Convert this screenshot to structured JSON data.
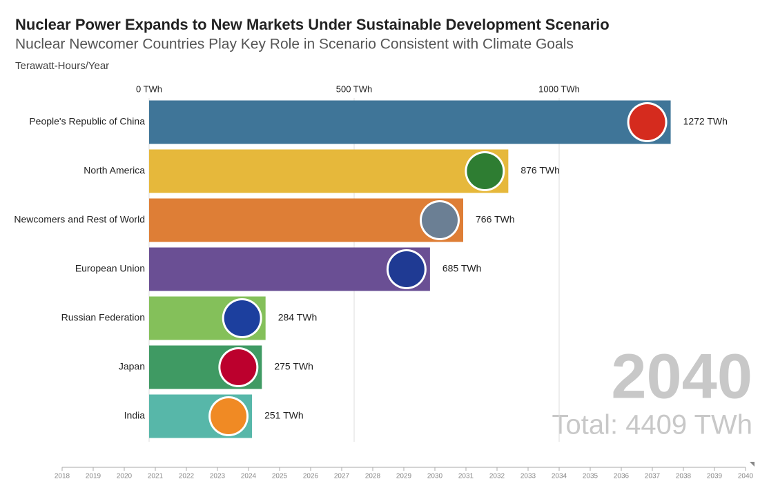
{
  "chart_data": {
    "type": "bar",
    "orientation": "horizontal",
    "title": "Nuclear Power Expands to New Markets Under Sustainable Development Scenario",
    "subtitle": "Nuclear Newcomer Countries Play Key Role in Scenario Consistent with Climate Goals",
    "unit_label": "Terawatt-Hours/Year",
    "categories": [
      "People's Republic of China",
      "North America",
      "Newcomers and Rest of World",
      "European Union",
      "Russian Federation",
      "Japan",
      "India"
    ],
    "values": [
      1272,
      876,
      766,
      685,
      284,
      275,
      251
    ],
    "value_labels": [
      "1272 TWh",
      "876 TWh",
      "766 TWh",
      "685 TWh",
      "284 TWh",
      "275 TWh",
      "251 TWh"
    ],
    "colors": [
      "#3f7598",
      "#e6b83b",
      "#de7e36",
      "#6a4f94",
      "#84c05a",
      "#3f9a63",
      "#57b7a9"
    ],
    "xlim": [
      0,
      1500
    ],
    "xticks": [
      {
        "value": 0,
        "label": "0 TWh"
      },
      {
        "value": 500,
        "label": "500 TWh"
      },
      {
        "value": 1000,
        "label": "1000 TWh"
      }
    ],
    "grid": true,
    "current_year": "2040",
    "total_label": "Total: 4409 TWh",
    "timeline": [
      2018,
      2019,
      2020,
      2021,
      2022,
      2023,
      2024,
      2025,
      2026,
      2027,
      2028,
      2029,
      2030,
      2031,
      2032,
      2033,
      2034,
      2035,
      2036,
      2037,
      2038,
      2039,
      2040
    ]
  }
}
